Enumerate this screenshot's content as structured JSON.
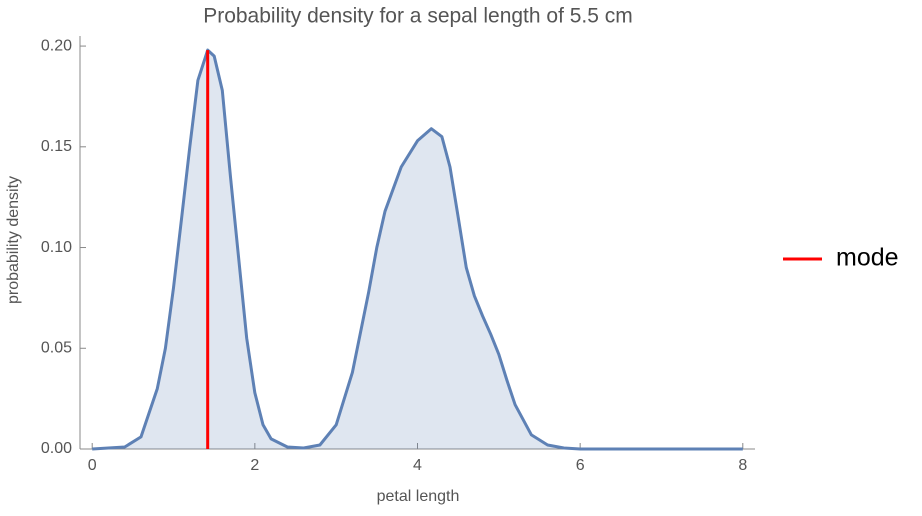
{
  "chart_data": {
    "type": "area",
    "title": "Probability density for a sepal length of 5.5 cm",
    "x_label": "petal length",
    "y_label": "probability density",
    "x": [
      0,
      0.4,
      0.6,
      0.8,
      0.9,
      1.0,
      1.1,
      1.2,
      1.3,
      1.42,
      1.5,
      1.6,
      1.7,
      1.8,
      1.9,
      2.0,
      2.1,
      2.2,
      2.4,
      2.6,
      2.8,
      3.0,
      3.2,
      3.4,
      3.5,
      3.6,
      3.8,
      4.0,
      4.17,
      4.3,
      4.4,
      4.5,
      4.6,
      4.7,
      4.8,
      4.9,
      5.0,
      5.1,
      5.2,
      5.4,
      5.6,
      5.8,
      6.0,
      8.0
    ],
    "series": [
      {
        "color": "#5e81b5",
        "values": [
          0,
          0.001,
          0.006,
          0.03,
          0.05,
          0.08,
          0.115,
          0.15,
          0.183,
          0.198,
          0.195,
          0.178,
          0.135,
          0.095,
          0.055,
          0.028,
          0.012,
          0.005,
          0.001,
          0.0005,
          0.002,
          0.012,
          0.038,
          0.078,
          0.1,
          0.118,
          0.14,
          0.153,
          0.159,
          0.155,
          0.14,
          0.115,
          0.09,
          0.076,
          0.066,
          0.057,
          0.047,
          0.034,
          0.022,
          0.007,
          0.002,
          0.0005,
          0,
          0
        ]
      }
    ],
    "mode": {
      "name": "mode",
      "x": 1.42,
      "y": 0.198,
      "color": "#ff0000"
    },
    "xlim": [
      -0.15,
      8.15
    ],
    "ylim": [
      0,
      0.205
    ],
    "xticks": [
      0,
      2,
      4,
      6,
      8
    ],
    "yticks": [
      {
        "value": 0,
        "label": "0.00"
      },
      {
        "value": 0.05,
        "label": "0.05"
      },
      {
        "value": 0.1,
        "label": "0.10"
      },
      {
        "value": 0.15,
        "label": "0.15"
      },
      {
        "value": 0.2,
        "label": "0.20"
      }
    ],
    "legend": "right"
  }
}
